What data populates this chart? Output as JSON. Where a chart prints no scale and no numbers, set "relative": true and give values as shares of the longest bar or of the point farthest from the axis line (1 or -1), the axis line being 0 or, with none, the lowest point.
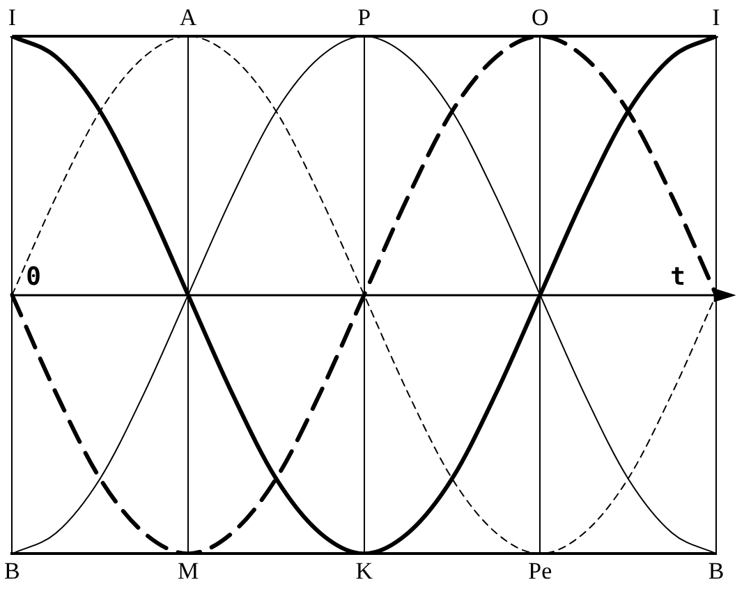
{
  "chart_data": {
    "type": "line",
    "relative": true,
    "legend": false,
    "marker": "none",
    "grid": "x",
    "categories": [
      "B",
      null,
      null,
      null,
      "M",
      null,
      null,
      null,
      "K",
      null,
      null,
      null,
      "Pe",
      null,
      null,
      null,
      "B"
    ],
    "annotations": [
      "0",
      "t",
      "I",
      "A",
      "P",
      "O",
      "I"
    ],
    "series": [
      {
        "color": "#000000",
        "line_style": "solid",
        "values": [
          1,
          0.92,
          0.71,
          0.38,
          0,
          -0.38,
          -0.71,
          -0.92,
          -1,
          -0.92,
          -0.71,
          -0.38,
          0,
          0.38,
          0.71,
          0.92,
          1
        ]
      },
      {
        "color": "#000000",
        "line_style": "dashed",
        "values": [
          0,
          0.38,
          0.71,
          0.92,
          1,
          0.92,
          0.71,
          0.38,
          0,
          -0.38,
          -0.71,
          -0.92,
          -1,
          -0.92,
          -0.71,
          -0.38,
          0
        ]
      },
      {
        "color": "#000000",
        "line_style": "solid",
        "values": [
          -1,
          -0.92,
          -0.71,
          -0.38,
          0,
          0.38,
          0.71,
          0.92,
          1,
          0.92,
          0.71,
          0.38,
          0,
          -0.38,
          -0.71,
          -0.92,
          -1
        ]
      },
      {
        "color": "#000000",
        "line_style": "dashed",
        "values": [
          0,
          -0.38,
          -0.71,
          -0.92,
          -1,
          -0.92,
          -0.71,
          -0.38,
          0,
          0.38,
          0.71,
          0.92,
          1,
          0.92,
          0.71,
          0.38,
          0
        ]
      }
    ]
  }
}
